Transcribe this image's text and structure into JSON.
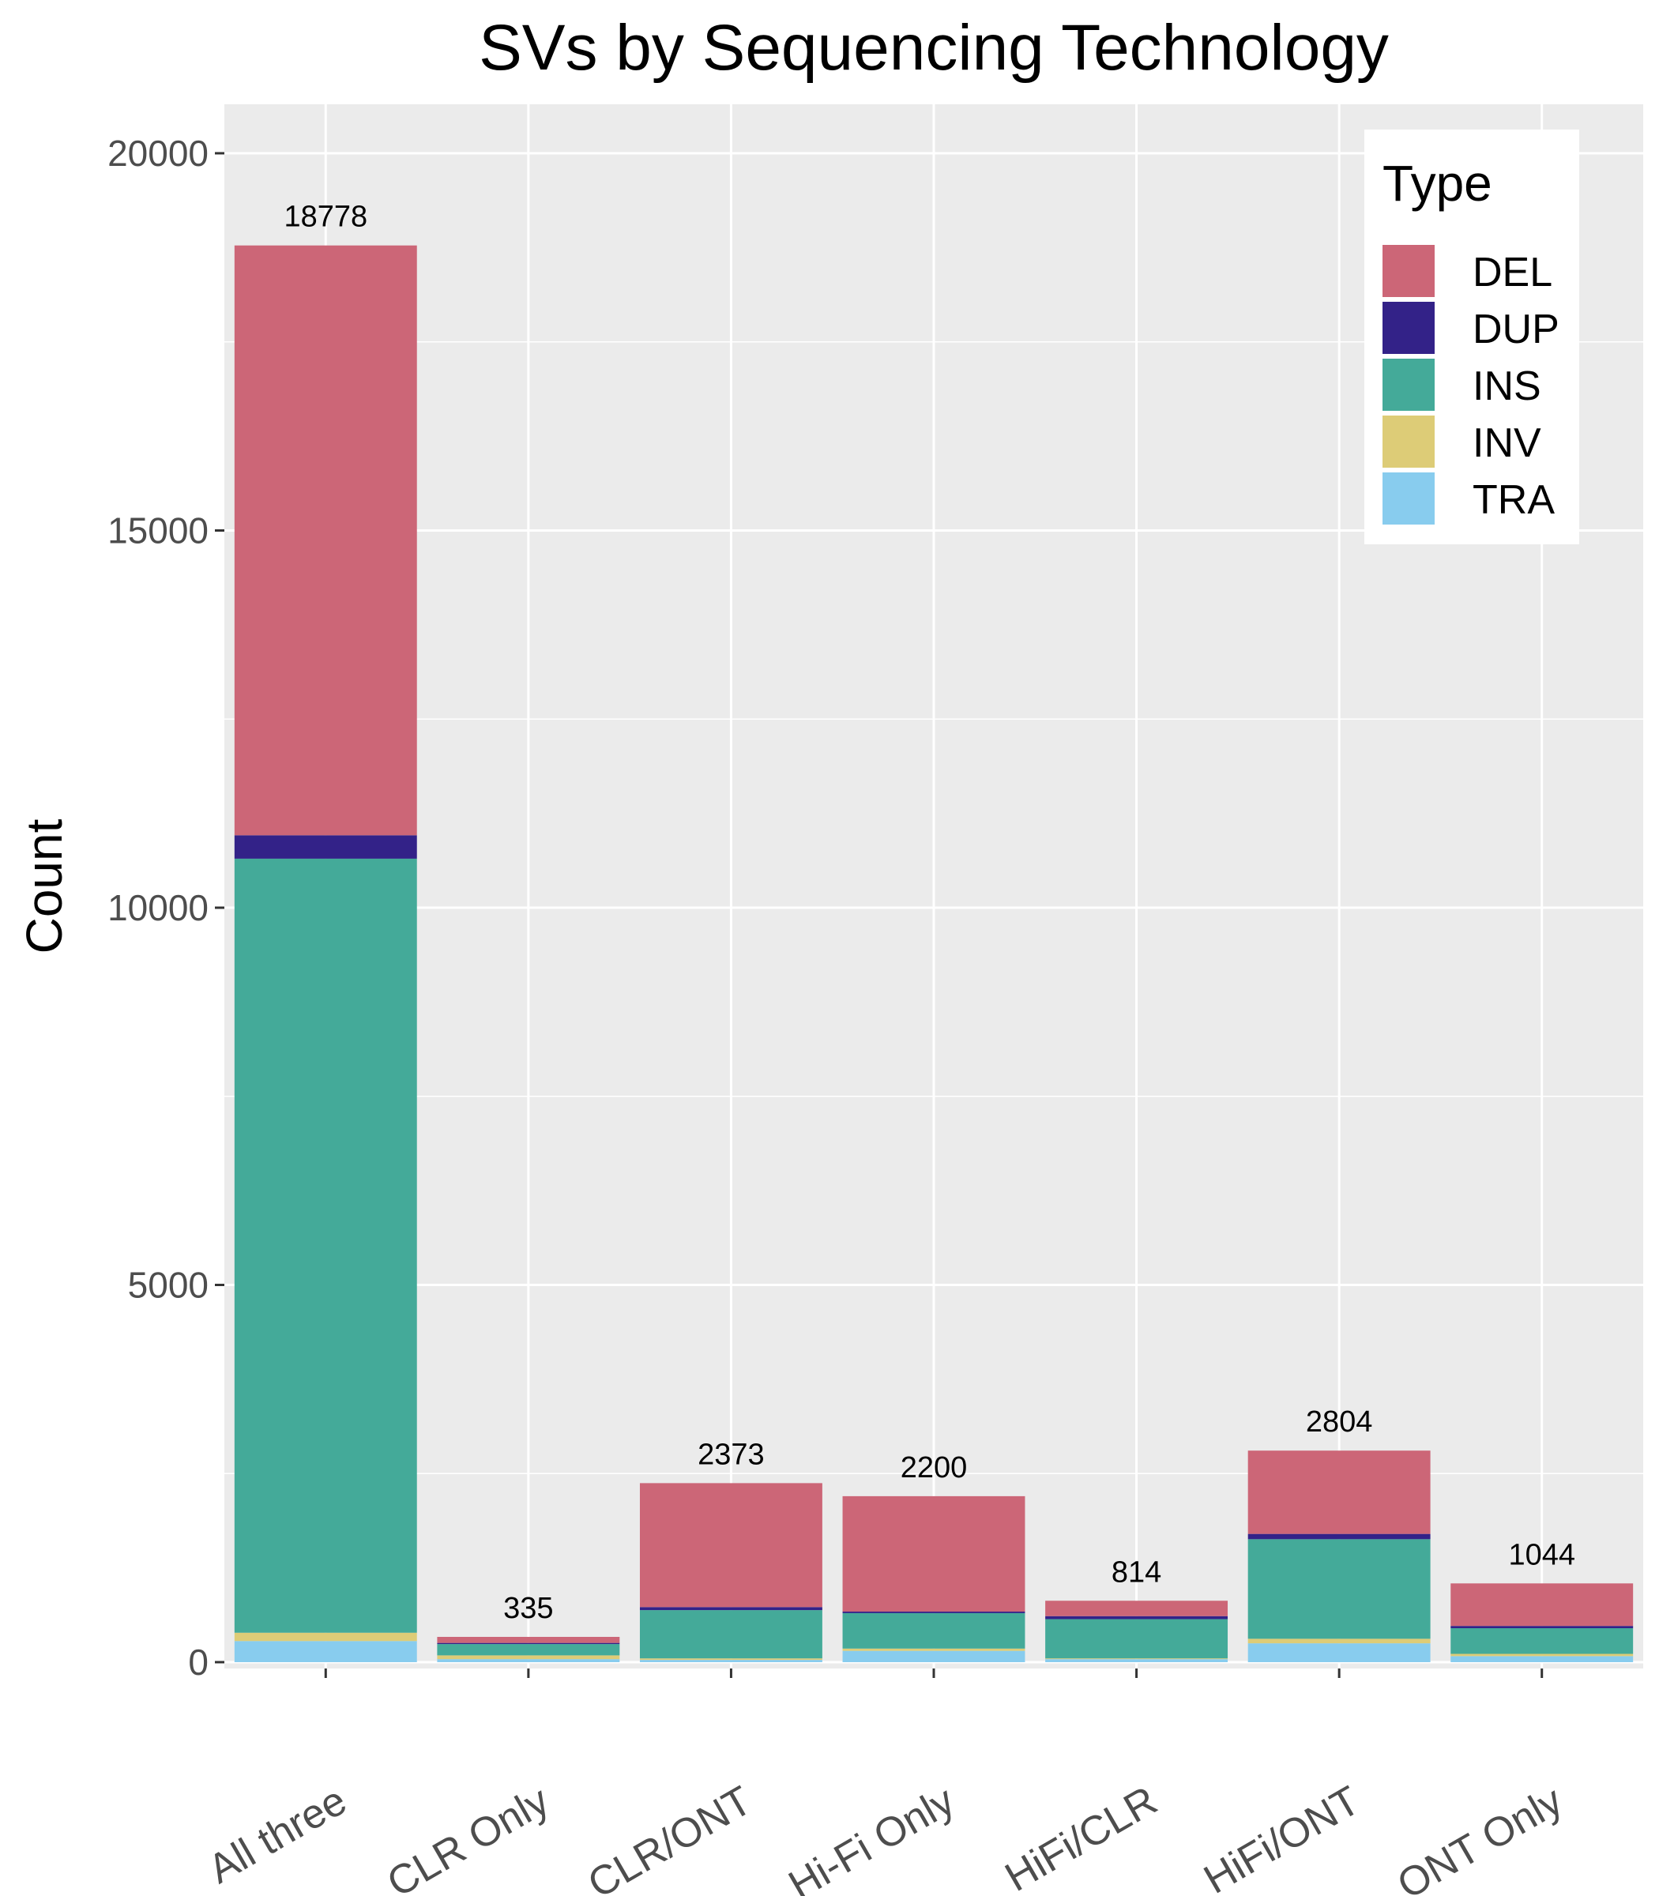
{
  "chart_data": {
    "type": "bar",
    "stacked": true,
    "title": "SVs by Sequencing Technology",
    "xlabel": "",
    "ylabel": "Count",
    "ylim": [
      0,
      20700
    ],
    "yticks": [
      0,
      5000,
      10000,
      15000,
      20000
    ],
    "categories": [
      "All three",
      "CLR Only",
      "CLR/ONT",
      "Hi-Fi Only",
      "HiFi/CLR",
      "HiFi/ONT",
      "ONT Only"
    ],
    "totals": [
      18778,
      335,
      2373,
      2200,
      814,
      2804,
      1044
    ],
    "series": [
      {
        "name": "TRA",
        "color": "#88CCEE",
        "values": [
          280,
          40,
          30,
          150,
          40,
          250,
          80
        ]
      },
      {
        "name": "INV",
        "color": "#DDCC77",
        "values": [
          110,
          50,
          20,
          30,
          10,
          60,
          30
        ]
      },
      {
        "name": "INS",
        "color": "#44AA99",
        "values": [
          10260,
          150,
          640,
          470,
          520,
          1320,
          340
        ]
      },
      {
        "name": "DUP",
        "color": "#332288",
        "values": [
          310,
          15,
          40,
          20,
          40,
          70,
          30
        ]
      },
      {
        "name": "DEL",
        "color": "#CC6677",
        "values": [
          7818,
          80,
          1643,
          1530,
          204,
          1104,
          564
        ]
      }
    ],
    "legend": {
      "title": "Type",
      "position": "top-right",
      "entries": [
        "DEL",
        "DUP",
        "INS",
        "INV",
        "TRA"
      ]
    },
    "grid": true,
    "background": "#EBEBEB",
    "gridline_color": "#FFFFFF"
  }
}
